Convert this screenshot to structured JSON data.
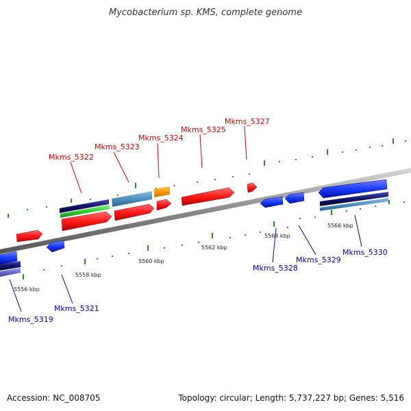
{
  "title": "Mycobacterium sp. KMS, complete genome",
  "footer": {
    "accession": "Accession: NC_008705",
    "summary": "Topology: circular; Length: 5,737,227 bp; Genes: 5,516"
  },
  "colors": {
    "backbone": "#888888",
    "forward_gene": "#ff1a1a",
    "reverse_gene": "#1a3dff",
    "forward_label": "#cc0000",
    "reverse_label": "#000099",
    "tick": "#2e8b2e",
    "track_navy": "#14146b",
    "track_green": "#33cc33",
    "track_steel": "#4f8fbf",
    "track_orange": "#ff9900",
    "track_slate": "#6a6acd"
  },
  "ticks": [
    {
      "label": "5556 kbp"
    },
    {
      "label": "5558 kbp"
    },
    {
      "label": "5560 kbp"
    },
    {
      "label": "5562 kbp"
    },
    {
      "label": "5564 kbp"
    },
    {
      "label": "5566 kbp"
    }
  ],
  "genes_forward": [
    {
      "label": "Mkms_5322"
    },
    {
      "label": "Mkms_5323"
    },
    {
      "label": "Mkms_5324"
    },
    {
      "label": "Mkms_5325"
    },
    {
      "label": "Mkms_5327"
    }
  ],
  "genes_reverse": [
    {
      "label": "Mkms_5319"
    },
    {
      "label": "Mkms_5321"
    },
    {
      "label": "Mkms_5328"
    },
    {
      "label": "Mkms_5329"
    },
    {
      "label": "Mkms_5330"
    }
  ]
}
